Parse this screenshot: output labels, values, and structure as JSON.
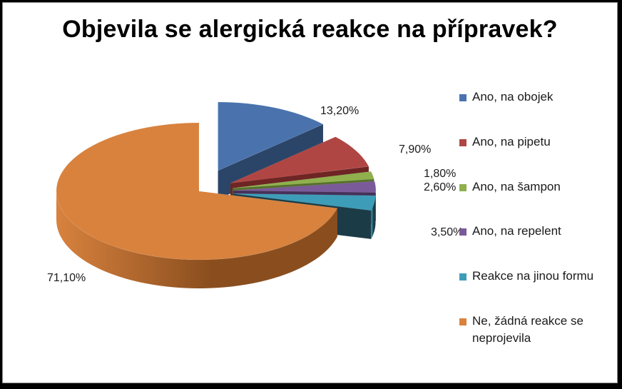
{
  "chart_data": {
    "type": "pie",
    "title": "Objevila se alergická reakce na přípravek?",
    "three_d": true,
    "legend_position": "right",
    "slices": [
      {
        "label": "Ano, na obojek",
        "value": 13.2,
        "display": "13,20%",
        "color": "#4a73ad",
        "dark": "#2b4568"
      },
      {
        "label": "Ano, na pipetu",
        "value": 7.9,
        "display": "7,90%",
        "color": "#b04643",
        "dark": "#6e2524"
      },
      {
        "label": "Ano, na šampon",
        "value": 1.8,
        "display": "1,80%",
        "color": "#8fb04c",
        "dark": "#56702a"
      },
      {
        "label": "Ano, na repelent",
        "value": 2.6,
        "display": "2,60%",
        "color": "#7a5a98",
        "dark": "#45315a"
      },
      {
        "label": "Reakce na jinou formu",
        "value": 3.5,
        "display": "3,50%",
        "color": "#3d9db8",
        "dark": "#1b3b46"
      },
      {
        "label": "Ne, žádná reakce se neprojevila",
        "value": 71.1,
        "display": "71,10%",
        "color": "#d8823e",
        "dark": "#8a4e1e"
      }
    ]
  }
}
